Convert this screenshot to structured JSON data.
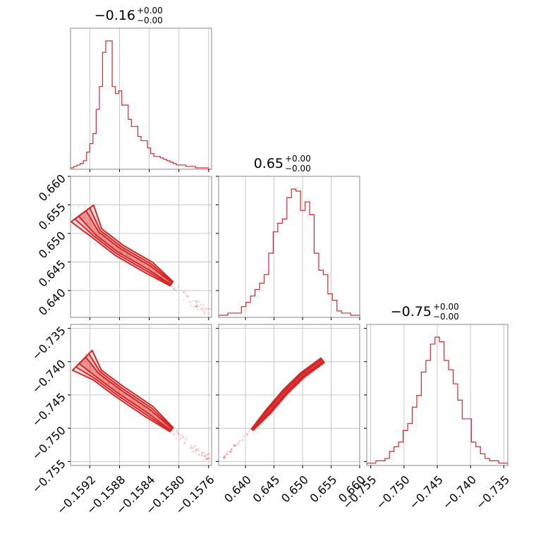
{
  "chart_data": {
    "type": "corner",
    "color": "#d62728",
    "grid": true,
    "parameters": [
      {
        "id": "p0",
        "title": "−0.16",
        "title_sup": "+0.00",
        "title_sub": "−0.00",
        "range": [
          -0.15946,
          -0.15756
        ],
        "ticks": [
          -0.1592,
          -0.1588,
          -0.1584,
          -0.158,
          -0.1576
        ],
        "tick_labels": [
          "−0.1592",
          "−0.1588",
          "−0.1584",
          "−0.1580",
          "−0.1576"
        ],
        "hist_counts": [
          1,
          2,
          3,
          4,
          6,
          12,
          18,
          25,
          42,
          58,
          82,
          90,
          90,
          58,
          53,
          55,
          45,
          45,
          35,
          30,
          30,
          23,
          20,
          20,
          15,
          11,
          9,
          9,
          8,
          7,
          6,
          5,
          4,
          3,
          3,
          3,
          2,
          2,
          2,
          1,
          1,
          1,
          1,
          0
        ]
      },
      {
        "id": "p1",
        "title": "0.65",
        "title_sup": "+0.00",
        "title_sub": "−0.00",
        "range": [
          0.6353,
          0.66
        ],
        "ticks": [
          0.64,
          0.645,
          0.65,
          0.655,
          0.66
        ],
        "tick_labels": [
          "0.640",
          "0.645",
          "0.650",
          "0.655",
          "0.660"
        ],
        "hist_counts": [
          1,
          1,
          2,
          2,
          2,
          5,
          7,
          10,
          13,
          16,
          20,
          30,
          40,
          44,
          46,
          56,
          60,
          59,
          50,
          54,
          48,
          30,
          22,
          20,
          11,
          8,
          3,
          2,
          2,
          1,
          1
        ]
      },
      {
        "id": "p2",
        "title": "−0.75",
        "title_sup": "+0.00",
        "title_sub": "−0.00",
        "range": [
          -0.7556,
          -0.7344
        ],
        "ticks": [
          -0.755,
          -0.75,
          -0.745,
          -0.74,
          -0.735
        ],
        "tick_labels": [
          "−0.755",
          "−0.750",
          "−0.745",
          "−0.740",
          "−0.735"
        ],
        "hist_counts": [
          1,
          1,
          2,
          2,
          3,
          6,
          8,
          10,
          15,
          18,
          25,
          30,
          40,
          45,
          52,
          55,
          53,
          45,
          41,
          35,
          28,
          20,
          20,
          10,
          8,
          5,
          3,
          2,
          2,
          1,
          1
        ]
      }
    ],
    "scatter_trend": [
      {
        "p0": -0.1593,
        "p1": 0.6535,
        "p2": -0.7398
      },
      {
        "p0": -0.1591,
        "p1": 0.65,
        "p2": -0.742
      },
      {
        "p0": -0.1588,
        "p1": 0.647,
        "p2": -0.7445
      },
      {
        "p0": -0.1584,
        "p1": 0.644,
        "p2": -0.7475
      },
      {
        "p0": -0.1581,
        "p1": 0.6412,
        "p2": -0.7502
      },
      {
        "p0": -0.1578,
        "p1": 0.6378,
        "p2": -0.753
      },
      {
        "p0": -0.1576,
        "p1": 0.6362,
        "p2": -0.7545
      }
    ]
  }
}
